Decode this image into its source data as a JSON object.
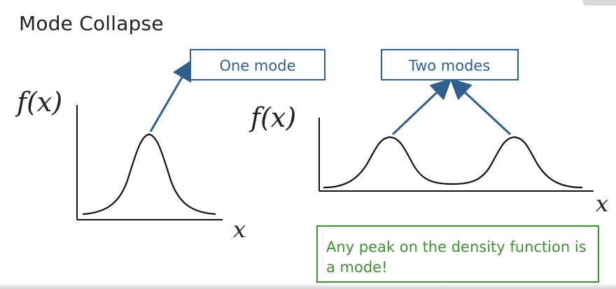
{
  "slide": {
    "title": "Mode Collapse",
    "left_box_label": "One mode",
    "right_box_label": "Two modes",
    "left_y_axis_label": "f(x)",
    "right_y_axis_label": "f(x)",
    "left_x_axis_label": "x",
    "right_x_axis_label": "x",
    "note_text": "Any peak on the density function is a mode!"
  },
  "colors": {
    "text": "#222222",
    "box_blue": "#2f5f8f",
    "arrow_blue": "#2f5f8f",
    "note_green": "#3f8f33",
    "curve": "#111111",
    "axis": "#111111"
  },
  "icons": {
    "corner_badge": "window-control-icon"
  }
}
